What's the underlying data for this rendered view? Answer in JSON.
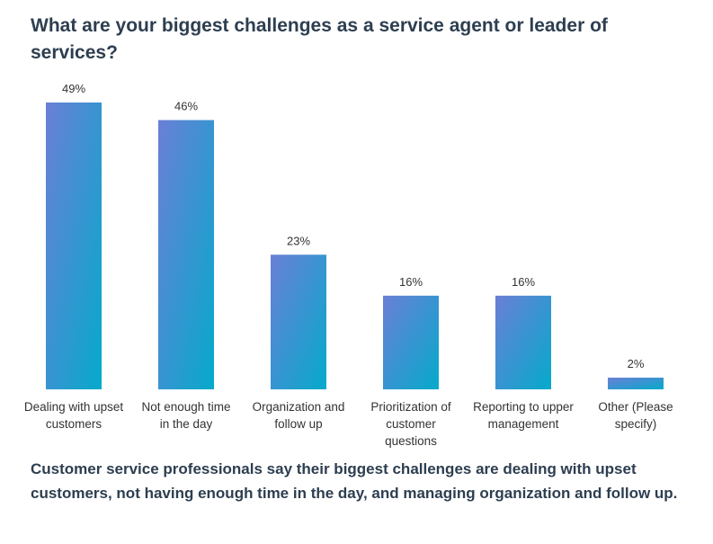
{
  "chart_data": {
    "type": "bar",
    "title": "What are your biggest challenges as a service agent or leader of services?",
    "categories": [
      [
        "Dealing with upset",
        "customers"
      ],
      [
        "Not enough time",
        "in the day"
      ],
      [
        "Organization and",
        "follow up"
      ],
      [
        "Prioritization of",
        "customer",
        "questions"
      ],
      [
        "Reporting to upper",
        "management"
      ],
      [
        "Other (Please",
        "specify)"
      ]
    ],
    "values": [
      49,
      46,
      23,
      16,
      16,
      2
    ],
    "value_labels": [
      "49%",
      "46%",
      "23%",
      "16%",
      "16%",
      "2%"
    ],
    "unit": "%",
    "xlabel": "",
    "ylabel": "",
    "ylim": [
      0,
      49
    ],
    "grid": false,
    "legend": "none",
    "colors": {
      "gradient_start": "#6a7fd6",
      "gradient_end": "#05aacb"
    }
  },
  "footer": {
    "text": "Customer service professionals say their biggest challenges are dealing with upset customers, not having enough time in the day, and managing organization and follow up."
  }
}
